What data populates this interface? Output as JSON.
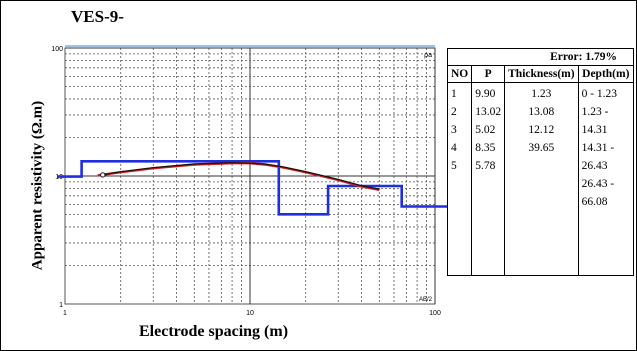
{
  "title": "VES-9-",
  "chart_data": {
    "type": "line",
    "xlabel": "Electrode spacing (m)",
    "ylabel": "Apparent resistivity (Ω.m)",
    "x_scale": "log",
    "y_scale": "log",
    "xlim": [
      1,
      100
    ],
    "ylim": [
      1,
      100
    ],
    "x_ticks": [
      "1",
      "10",
      "100"
    ],
    "y_ticks": [
      "100",
      "10",
      "1"
    ],
    "corner_labels": {
      "top_right": "ρa",
      "bottom_right": "AB/2"
    },
    "grid": true,
    "series": [
      {
        "style": "step",
        "color": "#1f2fe0",
        "x": [
          1,
          1.23,
          1.23,
          14.31,
          14.31,
          26.43,
          26.43,
          66.08,
          66.08,
          100
        ],
        "y": [
          9.9,
          9.9,
          13.02,
          13.02,
          5.02,
          5.02,
          8.35,
          8.35,
          5.78,
          5.78
        ]
      },
      {
        "style": "line",
        "color": "#cc1f1f",
        "x": [
          1.5,
          2,
          3,
          5,
          8,
          10,
          12,
          15,
          20,
          30,
          40,
          50
        ],
        "y": [
          10.1,
          10.7,
          11.5,
          12.3,
          12.6,
          12.6,
          12.3,
          11.7,
          10.7,
          9.3,
          8.3,
          7.8
        ]
      },
      {
        "style": "line",
        "color": "#111111",
        "x": [
          1.6,
          2,
          3,
          5,
          8,
          10,
          12,
          15,
          20,
          30,
          40,
          50
        ],
        "y": [
          10.2,
          10.8,
          11.6,
          12.4,
          12.7,
          12.6,
          12.4,
          11.8,
          10.8,
          9.4,
          8.4,
          7.9
        ]
      }
    ]
  },
  "table": {
    "error_label": "Error: 1.79%",
    "headers": [
      "NO",
      "P",
      "Thickness(m)",
      "Depth(m)"
    ],
    "rows": [
      [
        "1",
        "9.90",
        "1.23",
        "0 - 1.23"
      ],
      [
        "2",
        "13.02",
        "13.08",
        "1.23 - 14.31"
      ],
      [
        "3",
        "5.02",
        "12.12",
        "14.31 - 26.43"
      ],
      [
        "4",
        "8.35",
        "39.65",
        "26.43 - 66.08"
      ],
      [
        "5",
        "5.78",
        "",
        ""
      ]
    ]
  }
}
